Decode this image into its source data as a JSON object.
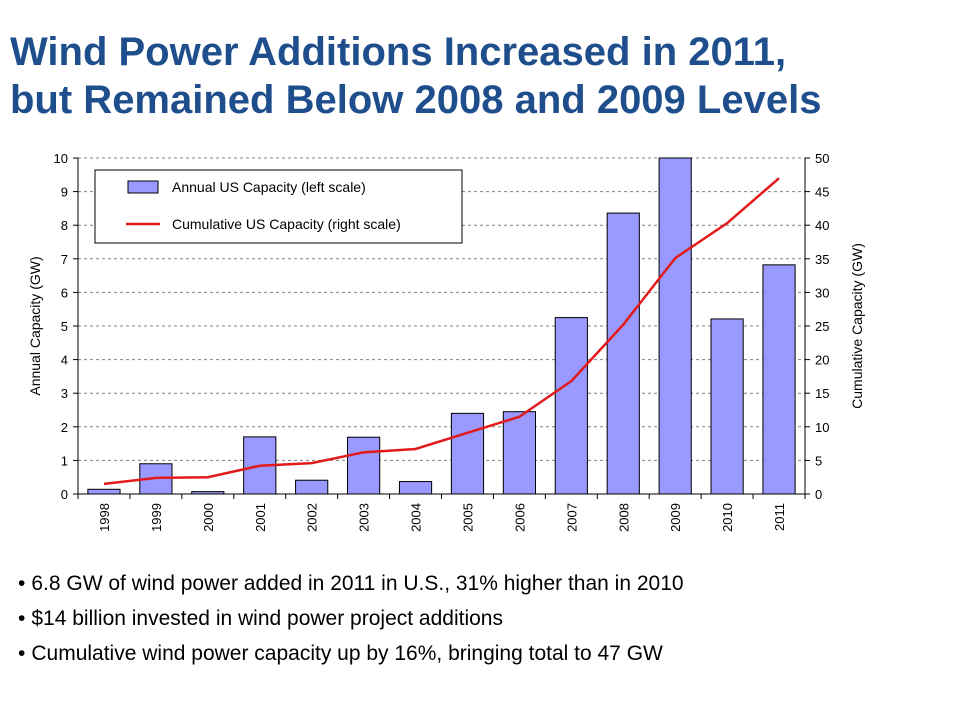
{
  "title": {
    "line1": "Wind Power Additions Increased in 2011,",
    "line2": "but Remained Below 2008 and 2009 Levels"
  },
  "chart_data": {
    "type": "bar",
    "categories": [
      "1998",
      "1999",
      "2000",
      "2001",
      "2002",
      "2003",
      "2004",
      "2005",
      "2006",
      "2007",
      "2008",
      "2009",
      "2010",
      "2011"
    ],
    "series": [
      {
        "name": "Annual US Capacity (left scale)",
        "type": "bar",
        "axis": "left",
        "color": "#9999ff",
        "values": [
          0.14,
          0.9,
          0.07,
          1.7,
          0.41,
          1.69,
          0.37,
          2.4,
          2.45,
          5.25,
          8.36,
          10.0,
          5.21,
          6.82
        ]
      },
      {
        "name": "Cumulative US Capacity (right scale)",
        "type": "line",
        "axis": "right",
        "color": "#e31a1c",
        "values": [
          1.5,
          2.4,
          2.5,
          4.2,
          4.6,
          6.2,
          6.7,
          9.1,
          11.5,
          16.8,
          25.2,
          35.1,
          40.3,
          47.0
        ]
      }
    ],
    "ylabel": "Annual Capacity (GW)",
    "y2label": "Cumulative Capacity (GW)",
    "ylim": [
      0,
      10
    ],
    "y2lim": [
      0,
      50
    ],
    "yticks": [
      0,
      1,
      2,
      3,
      4,
      5,
      6,
      7,
      8,
      9,
      10
    ],
    "y2ticks": [
      0,
      5,
      10,
      15,
      20,
      25,
      30,
      35,
      40,
      45,
      50
    ],
    "grid": true,
    "legend_position": "top-left"
  },
  "bullets": [
    "6.8 GW of wind power added in 2011 in U.S., 31% higher than in 2010",
    "$14 billion invested in wind power project additions",
    "Cumulative wind power capacity up by 16%, bringing total to 47 GW"
  ]
}
